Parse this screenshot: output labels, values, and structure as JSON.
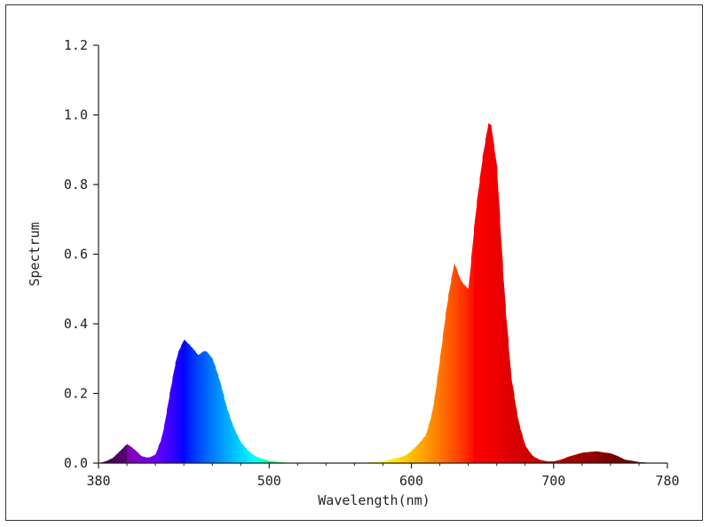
{
  "chart_data": {
    "type": "area",
    "title": "",
    "xlabel": "Wavelength(nm)",
    "ylabel": "Spectrum",
    "xlim": [
      380,
      780
    ],
    "ylim": [
      0,
      1.2
    ],
    "x_ticks": [
      380,
      500,
      600,
      700,
      780
    ],
    "x_tick_labels": [
      "380",
      "500",
      "600",
      "700",
      "780"
    ],
    "y_ticks": [
      0,
      0.2,
      0.4,
      0.6,
      0.8,
      1.0,
      1.2
    ],
    "y_tick_labels": [
      "0.0",
      "0.2",
      "0.4",
      "0.6",
      "0.8",
      "1.0",
      "1.2"
    ],
    "grid": false,
    "fill": "spectral color gradient",
    "x": [
      380,
      385,
      390,
      395,
      400,
      405,
      410,
      415,
      420,
      425,
      430,
      435,
      440,
      445,
      450,
      455,
      460,
      465,
      470,
      475,
      480,
      485,
      490,
      495,
      500,
      510,
      520,
      530,
      540,
      550,
      560,
      570,
      580,
      585,
      590,
      595,
      600,
      605,
      610,
      615,
      620,
      625,
      630,
      635,
      640,
      645,
      650,
      655,
      660,
      665,
      670,
      675,
      680,
      685,
      690,
      695,
      700,
      705,
      710,
      720,
      730,
      740,
      745,
      750,
      760,
      770,
      780
    ],
    "y": [
      0.0,
      0.005,
      0.015,
      0.035,
      0.055,
      0.04,
      0.02,
      0.015,
      0.025,
      0.08,
      0.2,
      0.31,
      0.355,
      0.335,
      0.31,
      0.325,
      0.3,
      0.24,
      0.16,
      0.1,
      0.06,
      0.035,
      0.02,
      0.012,
      0.006,
      0.002,
      0.0,
      0.0,
      0.0,
      0.0,
      0.0,
      0.002,
      0.005,
      0.01,
      0.015,
      0.02,
      0.035,
      0.055,
      0.08,
      0.15,
      0.3,
      0.46,
      0.575,
      0.52,
      0.5,
      0.72,
      0.88,
      1.0,
      0.85,
      0.5,
      0.25,
      0.12,
      0.05,
      0.02,
      0.01,
      0.005,
      0.005,
      0.01,
      0.018,
      0.03,
      0.034,
      0.028,
      0.02,
      0.01,
      0.003,
      0.0,
      0.0
    ]
  }
}
